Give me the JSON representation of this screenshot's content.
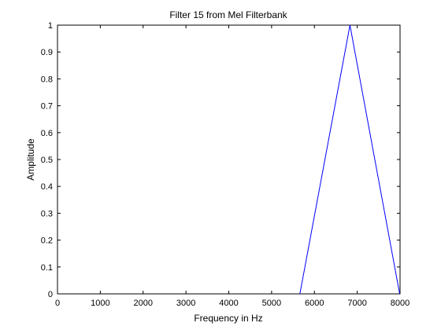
{
  "chart_data": {
    "type": "line",
    "title": "Filter 15 from Mel Filterbank",
    "xlabel": "Frequency in Hz",
    "ylabel": "Amplitude",
    "xlim": [
      0,
      8000
    ],
    "ylim": [
      0,
      1
    ],
    "grid": false,
    "x_ticks": [
      0,
      1000,
      2000,
      3000,
      4000,
      5000,
      6000,
      7000,
      8000
    ],
    "x_tick_labels": [
      "0",
      "1000",
      "2000",
      "3000",
      "4000",
      "5000",
      "6000",
      "7000",
      "8000"
    ],
    "y_ticks": [
      0,
      0.1,
      0.2,
      0.3,
      0.4,
      0.5,
      0.6,
      0.7,
      0.8,
      0.9,
      1
    ],
    "y_tick_labels": [
      "0",
      "0.1",
      "0.2",
      "0.3",
      "0.4",
      "0.5",
      "0.6",
      "0.7",
      "0.8",
      "0.9",
      "1"
    ],
    "series": [
      {
        "name": "Filter 15",
        "color": "#0000ff",
        "x": [
          5660,
          6830,
          7990
        ],
        "y": [
          0,
          1,
          0
        ]
      }
    ]
  }
}
